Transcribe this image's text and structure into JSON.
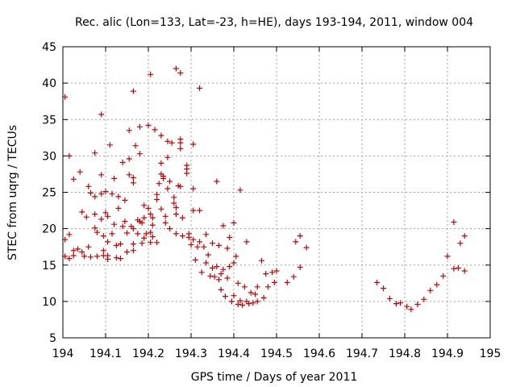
{
  "chart_data": {
    "type": "scatter",
    "title": "Rec. alic (Lon=133, Lat=-23, h=HE), days 193-194, 2011, window 004",
    "xlabel": "GPS time / Days of year 2011",
    "ylabel": "STEC from uqrg / TECUs",
    "xlim": [
      194,
      195
    ],
    "ylim": [
      5,
      45
    ],
    "xticks": [
      194,
      194.1,
      194.2,
      194.3,
      194.4,
      194.5,
      194.6,
      194.7,
      194.8,
      194.9,
      195
    ],
    "xtick_labels": [
      "194",
      "194.1",
      "194.2",
      "194.3",
      "194.4",
      "194.5",
      "194.6",
      "194.7",
      "194.8",
      "194.9",
      "195"
    ],
    "yticks": [
      5,
      10,
      15,
      20,
      25,
      30,
      35,
      40,
      45
    ],
    "ytick_labels": [
      "5",
      "10",
      "15",
      "20",
      "25",
      "30",
      "35",
      "40",
      "45"
    ],
    "grid": true,
    "marker": "+",
    "color": "#cc0000",
    "points": [
      [
        194.005,
        38.1
      ],
      [
        194.005,
        18.5
      ],
      [
        194.005,
        16.2
      ],
      [
        194.015,
        30.0
      ],
      [
        194.015,
        19.2
      ],
      [
        194.015,
        15.9
      ],
      [
        194.025,
        26.8
      ],
      [
        194.025,
        17.0
      ],
      [
        194.025,
        16.3
      ],
      [
        194.035,
        17.2
      ],
      [
        194.04,
        27.8
      ],
      [
        194.045,
        22.3
      ],
      [
        194.045,
        16.8
      ],
      [
        194.05,
        16.2
      ],
      [
        194.055,
        21.6
      ],
      [
        194.06,
        25.8
      ],
      [
        194.06,
        17.5
      ],
      [
        194.065,
        24.9
      ],
      [
        194.065,
        16.1
      ],
      [
        194.075,
        30.4
      ],
      [
        194.075,
        24.4
      ],
      [
        194.075,
        22.0
      ],
      [
        194.075,
        20.1
      ],
      [
        194.08,
        19.5
      ],
      [
        194.08,
        16.2
      ],
      [
        194.09,
        35.7
      ],
      [
        194.09,
        27.4
      ],
      [
        194.09,
        24.8
      ],
      [
        194.09,
        21.3
      ],
      [
        194.095,
        19.0
      ],
      [
        194.095,
        17.0
      ],
      [
        194.095,
        16.3
      ],
      [
        194.1,
        25.1
      ],
      [
        194.1,
        22.2
      ],
      [
        194.105,
        21.7
      ],
      [
        194.105,
        18.2
      ],
      [
        194.105,
        16.3
      ],
      [
        194.105,
        15.8
      ],
      [
        194.11,
        31.5
      ],
      [
        194.115,
        24.8
      ],
      [
        194.115,
        19.3
      ],
      [
        194.12,
        26.9
      ],
      [
        194.12,
        20.6
      ],
      [
        194.125,
        17.7
      ],
      [
        194.125,
        16.0
      ],
      [
        194.13,
        24.4
      ],
      [
        194.13,
        22.8
      ],
      [
        194.135,
        17.9
      ],
      [
        194.135,
        15.9
      ],
      [
        194.14,
        29.1
      ],
      [
        194.14,
        20.3
      ],
      [
        194.145,
        23.9
      ],
      [
        194.145,
        21.0
      ],
      [
        194.15,
        19.4
      ],
      [
        194.15,
        16.8
      ],
      [
        194.155,
        33.5
      ],
      [
        194.155,
        29.6
      ],
      [
        194.155,
        27.4
      ],
      [
        194.16,
        20.3
      ],
      [
        194.165,
        38.9
      ],
      [
        194.165,
        27.0
      ],
      [
        194.165,
        26.3
      ],
      [
        194.165,
        20.0
      ],
      [
        194.165,
        17.9
      ],
      [
        194.165,
        17.0
      ],
      [
        194.17,
        31.4
      ],
      [
        194.175,
        21.2
      ],
      [
        194.175,
        19.3
      ],
      [
        194.18,
        34.0
      ],
      [
        194.18,
        30.3
      ],
      [
        194.18,
        21.0
      ],
      [
        194.185,
        20.8
      ],
      [
        194.185,
        18.0
      ],
      [
        194.19,
        23.2
      ],
      [
        194.19,
        21.5
      ],
      [
        194.19,
        18.7
      ],
      [
        194.195,
        19.3
      ],
      [
        194.2,
        34.2
      ],
      [
        194.2,
        22.8
      ],
      [
        194.205,
        41.2
      ],
      [
        194.205,
        22.0
      ],
      [
        194.205,
        19.5
      ],
      [
        194.205,
        18.1
      ],
      [
        194.21,
        21.5
      ],
      [
        194.21,
        20.5
      ],
      [
        194.21,
        18.9
      ],
      [
        194.215,
        33.6
      ],
      [
        194.22,
        24.7
      ],
      [
        194.22,
        24.0
      ],
      [
        194.22,
        18.1
      ],
      [
        194.225,
        26.2
      ],
      [
        194.23,
        32.8
      ],
      [
        194.23,
        29.0
      ],
      [
        194.23,
        27.5
      ],
      [
        194.23,
        22.7
      ],
      [
        194.235,
        27.2
      ],
      [
        194.235,
        26.9
      ],
      [
        194.24,
        21.7
      ],
      [
        194.24,
        20.8
      ],
      [
        194.245,
        32.0
      ],
      [
        194.245,
        29.8
      ],
      [
        194.245,
        25.5
      ],
      [
        194.25,
        26.5
      ],
      [
        194.25,
        20.0
      ],
      [
        194.255,
        31.8
      ],
      [
        194.26,
        24.3
      ],
      [
        194.26,
        23.5
      ],
      [
        194.265,
        42.0
      ],
      [
        194.265,
        22.9
      ],
      [
        194.265,
        22.0
      ],
      [
        194.265,
        19.3
      ],
      [
        194.27,
        25.9
      ],
      [
        194.275,
        41.4
      ],
      [
        194.275,
        32.3
      ],
      [
        194.275,
        31.8
      ],
      [
        194.275,
        31.0
      ],
      [
        194.275,
        25.8
      ],
      [
        194.28,
        21.5
      ],
      [
        194.28,
        19.0
      ],
      [
        194.29,
        28.7
      ],
      [
        194.29,
        28.2
      ],
      [
        194.29,
        27.6
      ],
      [
        194.295,
        19.3
      ],
      [
        194.295,
        18.8
      ],
      [
        194.3,
        17.8
      ],
      [
        194.305,
        31.6
      ],
      [
        194.305,
        25.5
      ],
      [
        194.305,
        22.5
      ],
      [
        194.305,
        18.5
      ],
      [
        194.31,
        15.7
      ],
      [
        194.315,
        17.5
      ],
      [
        194.32,
        39.3
      ],
      [
        194.32,
        22.5
      ],
      [
        194.32,
        18.2
      ],
      [
        194.325,
        14.0
      ],
      [
        194.33,
        17.5
      ],
      [
        194.335,
        19.2
      ],
      [
        194.335,
        15.3
      ],
      [
        194.34,
        16.4
      ],
      [
        194.345,
        13.5
      ],
      [
        194.35,
        18.0
      ],
      [
        194.35,
        14.6
      ],
      [
        194.355,
        13.4
      ],
      [
        194.36,
        26.5
      ],
      [
        194.36,
        14.8
      ],
      [
        194.365,
        13.0
      ],
      [
        194.365,
        17.7
      ],
      [
        194.37,
        11.6
      ],
      [
        194.37,
        13.8
      ],
      [
        194.375,
        20.4
      ],
      [
        194.375,
        14.4
      ],
      [
        194.38,
        10.7
      ],
      [
        194.385,
        17.3
      ],
      [
        194.385,
        13.2
      ],
      [
        194.39,
        18.8
      ],
      [
        194.39,
        14.8
      ],
      [
        194.395,
        10.0
      ],
      [
        194.4,
        20.8
      ],
      [
        194.4,
        15.3
      ],
      [
        194.4,
        10.8
      ],
      [
        194.405,
        16.2
      ],
      [
        194.41,
        9.6
      ],
      [
        194.41,
        12.5
      ],
      [
        194.415,
        25.3
      ],
      [
        194.415,
        10.1
      ],
      [
        194.42,
        9.5
      ],
      [
        194.425,
        12.0
      ],
      [
        194.43,
        18.2
      ],
      [
        194.43,
        10.0
      ],
      [
        194.435,
        9.7
      ],
      [
        194.44,
        11.2
      ],
      [
        194.445,
        9.8
      ],
      [
        194.45,
        11.0
      ],
      [
        194.455,
        12.0
      ],
      [
        194.455,
        10.0
      ],
      [
        194.465,
        15.6
      ],
      [
        194.47,
        10.5
      ],
      [
        194.475,
        13.8
      ],
      [
        194.48,
        12.0
      ],
      [
        194.49,
        14.0
      ],
      [
        194.495,
        12.6
      ],
      [
        194.5,
        14.2
      ],
      [
        194.525,
        12.6
      ],
      [
        194.54,
        13.4
      ],
      [
        194.545,
        18.2
      ],
      [
        194.555,
        19.0
      ],
      [
        194.555,
        14.7
      ],
      [
        194.57,
        17.4
      ],
      [
        194.735,
        12.6
      ],
      [
        194.75,
        11.8
      ],
      [
        194.765,
        10.4
      ],
      [
        194.78,
        9.7
      ],
      [
        194.79,
        9.8
      ],
      [
        194.805,
        9.3
      ],
      [
        194.815,
        8.9
      ],
      [
        194.83,
        9.6
      ],
      [
        194.845,
        10.3
      ],
      [
        194.86,
        11.5
      ],
      [
        194.875,
        12.3
      ],
      [
        194.89,
        13.5
      ],
      [
        194.9,
        16.2
      ],
      [
        194.915,
        20.9
      ],
      [
        194.915,
        14.5
      ],
      [
        194.925,
        14.6
      ],
      [
        194.93,
        18.0
      ],
      [
        194.94,
        19.0
      ],
      [
        194.94,
        14.2
      ]
    ]
  }
}
